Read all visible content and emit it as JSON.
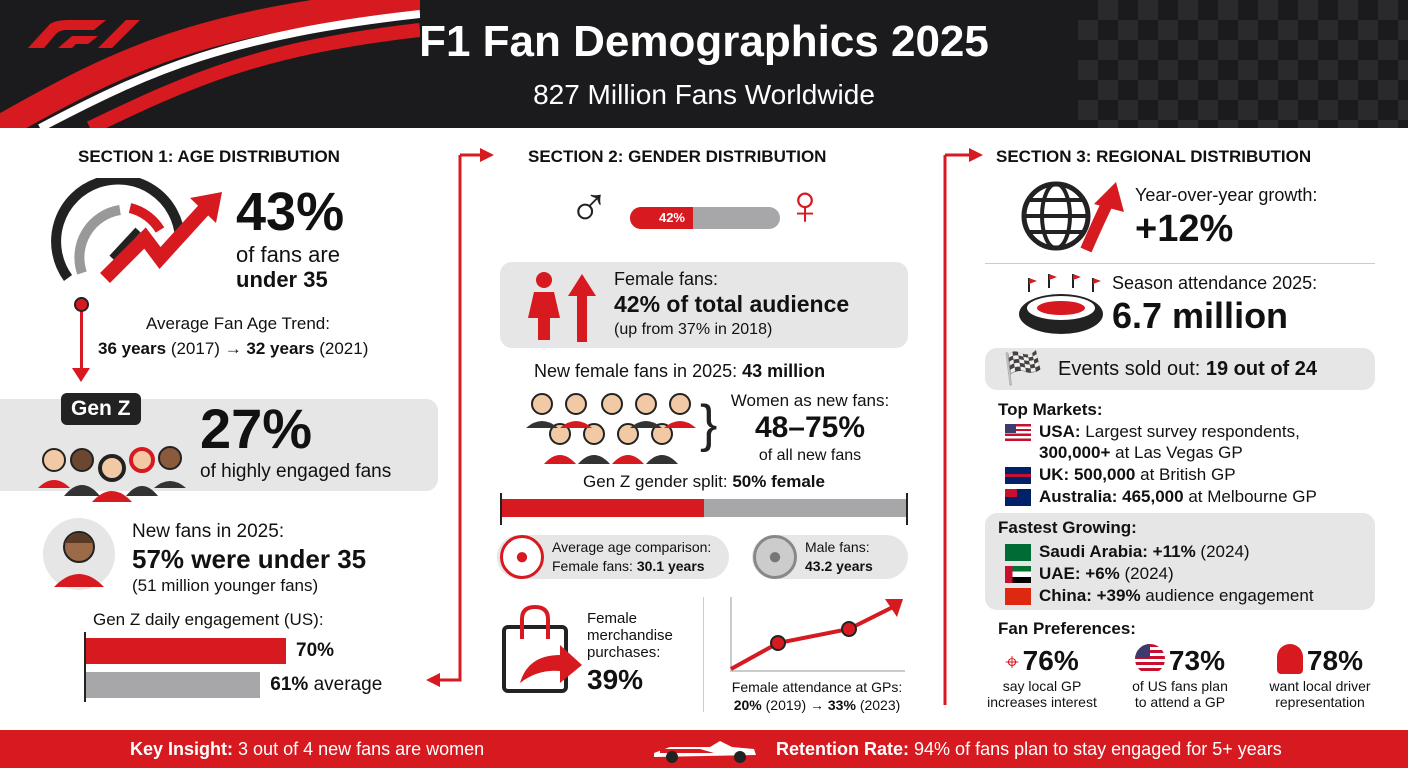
{
  "header": {
    "title": "F1 Fan Demographics 2025",
    "subtitle": "827 Million Fans Worldwide",
    "logo": "F1"
  },
  "section1": {
    "title": "SECTION 1: AGE DISTRIBUTION",
    "under35_pct": "43%",
    "under35_line1": "of fans are",
    "under35_line2": "under 35",
    "trend_label": "Average Fan Age Trend:",
    "trend_from": "36 years",
    "trend_from_year": "(2017)",
    "arrow": "→",
    "trend_to": "32 years",
    "trend_to_year": "(2021)",
    "genz_badge": "Gen Z",
    "genz_pct": "27%",
    "genz_caption": "of highly engaged fans",
    "new_fans_label": "New fans in 2025:",
    "new_fans_value": "57% were under 35",
    "new_fans_note": "(51 million younger fans)",
    "engagement_title": "Gen Z daily engagement (US):",
    "bars": [
      {
        "label": "70%",
        "value": 70,
        "color": "#d71920"
      },
      {
        "label": "61%",
        "suffix": "average",
        "value": 61,
        "color": "#a7a7aa"
      }
    ]
  },
  "section2": {
    "title": "SECTION 2: GENDER DISTRIBUTION",
    "female_share_bar": {
      "label": "42%",
      "value": 42
    },
    "female_label": "Female fans:",
    "female_value": "42% of total audience",
    "female_note": "(up from 37% in 2018)",
    "new_female_label": "New female fans in 2025:",
    "new_female_value": "43 million",
    "women_new_label": "Women as new fans:",
    "women_new_value": "48–75%",
    "women_new_note": "of all new fans",
    "genz_split_label": "Gen Z gender split:",
    "genz_split_value": "50% female",
    "genz_split_pct": 50,
    "avg_age_label": "Average age comparison:",
    "female_age_label": "Female fans:",
    "female_age": "30.1 years",
    "male_age_label": "Male fans:",
    "male_age": "43.2 years",
    "merch_label": [
      "Female",
      "merchandise",
      "purchases:"
    ],
    "merch_value": "39%",
    "attendance_label": "Female attendance at GPs:",
    "attendance_from": "20%",
    "attendance_from_year": "(2019)",
    "arrow": "→",
    "attendance_to": "33%",
    "attendance_to_year": "(2023)"
  },
  "section3": {
    "title": "SECTION 3: REGIONAL DISTRIBUTION",
    "growth_label": "Year-over-year growth:",
    "growth_value": "+12%",
    "attendance_label": "Season attendance 2025:",
    "attendance_value": "6.7 million",
    "soldout_label": "Events sold out:",
    "soldout_value": "19 out of 24",
    "top_markets_title": "Top Markets:",
    "markets": [
      {
        "flag": "usa-flag",
        "name": "USA:",
        "text": "Largest survey respondents,",
        "bold2": "300,000+",
        "text2": "at Las Vegas GP"
      },
      {
        "flag": "uk-flag",
        "name": "UK: 500,000",
        "text": "at British GP"
      },
      {
        "flag": "australia-flag",
        "name": "Australia: 465,000",
        "text": "at Melbourne GP"
      }
    ],
    "fastest_title": "Fastest Growing:",
    "fastest": [
      {
        "flag": "saudi-flag",
        "name": "Saudi Arabia: +11%",
        "text": "(2024)"
      },
      {
        "flag": "uae-flag",
        "name": "UAE: +6%",
        "text": "(2024)"
      },
      {
        "flag": "china-flag",
        "name": "China: +39%",
        "text": "audience engagement"
      }
    ],
    "prefs_title": "Fan Preferences:",
    "prefs": [
      {
        "icon": "map-pin-icon",
        "value": "76%",
        "line1": "say local GP",
        "line2": "increases interest"
      },
      {
        "icon": "us-globe-icon",
        "value": "73%",
        "line1": "of US fans plan",
        "line2": "to attend a GP"
      },
      {
        "icon": "driver-icon",
        "value": "78%",
        "line1": "want local driver",
        "line2": "representation"
      }
    ]
  },
  "footer": {
    "insight_label": "Key Insight:",
    "insight_text": "3 out of 4 new fans are women",
    "retention_label": "Retention Rate:",
    "retention_text": "94% of fans plan to stay engaged for 5+ years"
  },
  "colors": {
    "accent": "#d71920",
    "dark": "#1b1b1d",
    "panel": "#e6e6e6",
    "gray_bar": "#a7a7aa"
  }
}
